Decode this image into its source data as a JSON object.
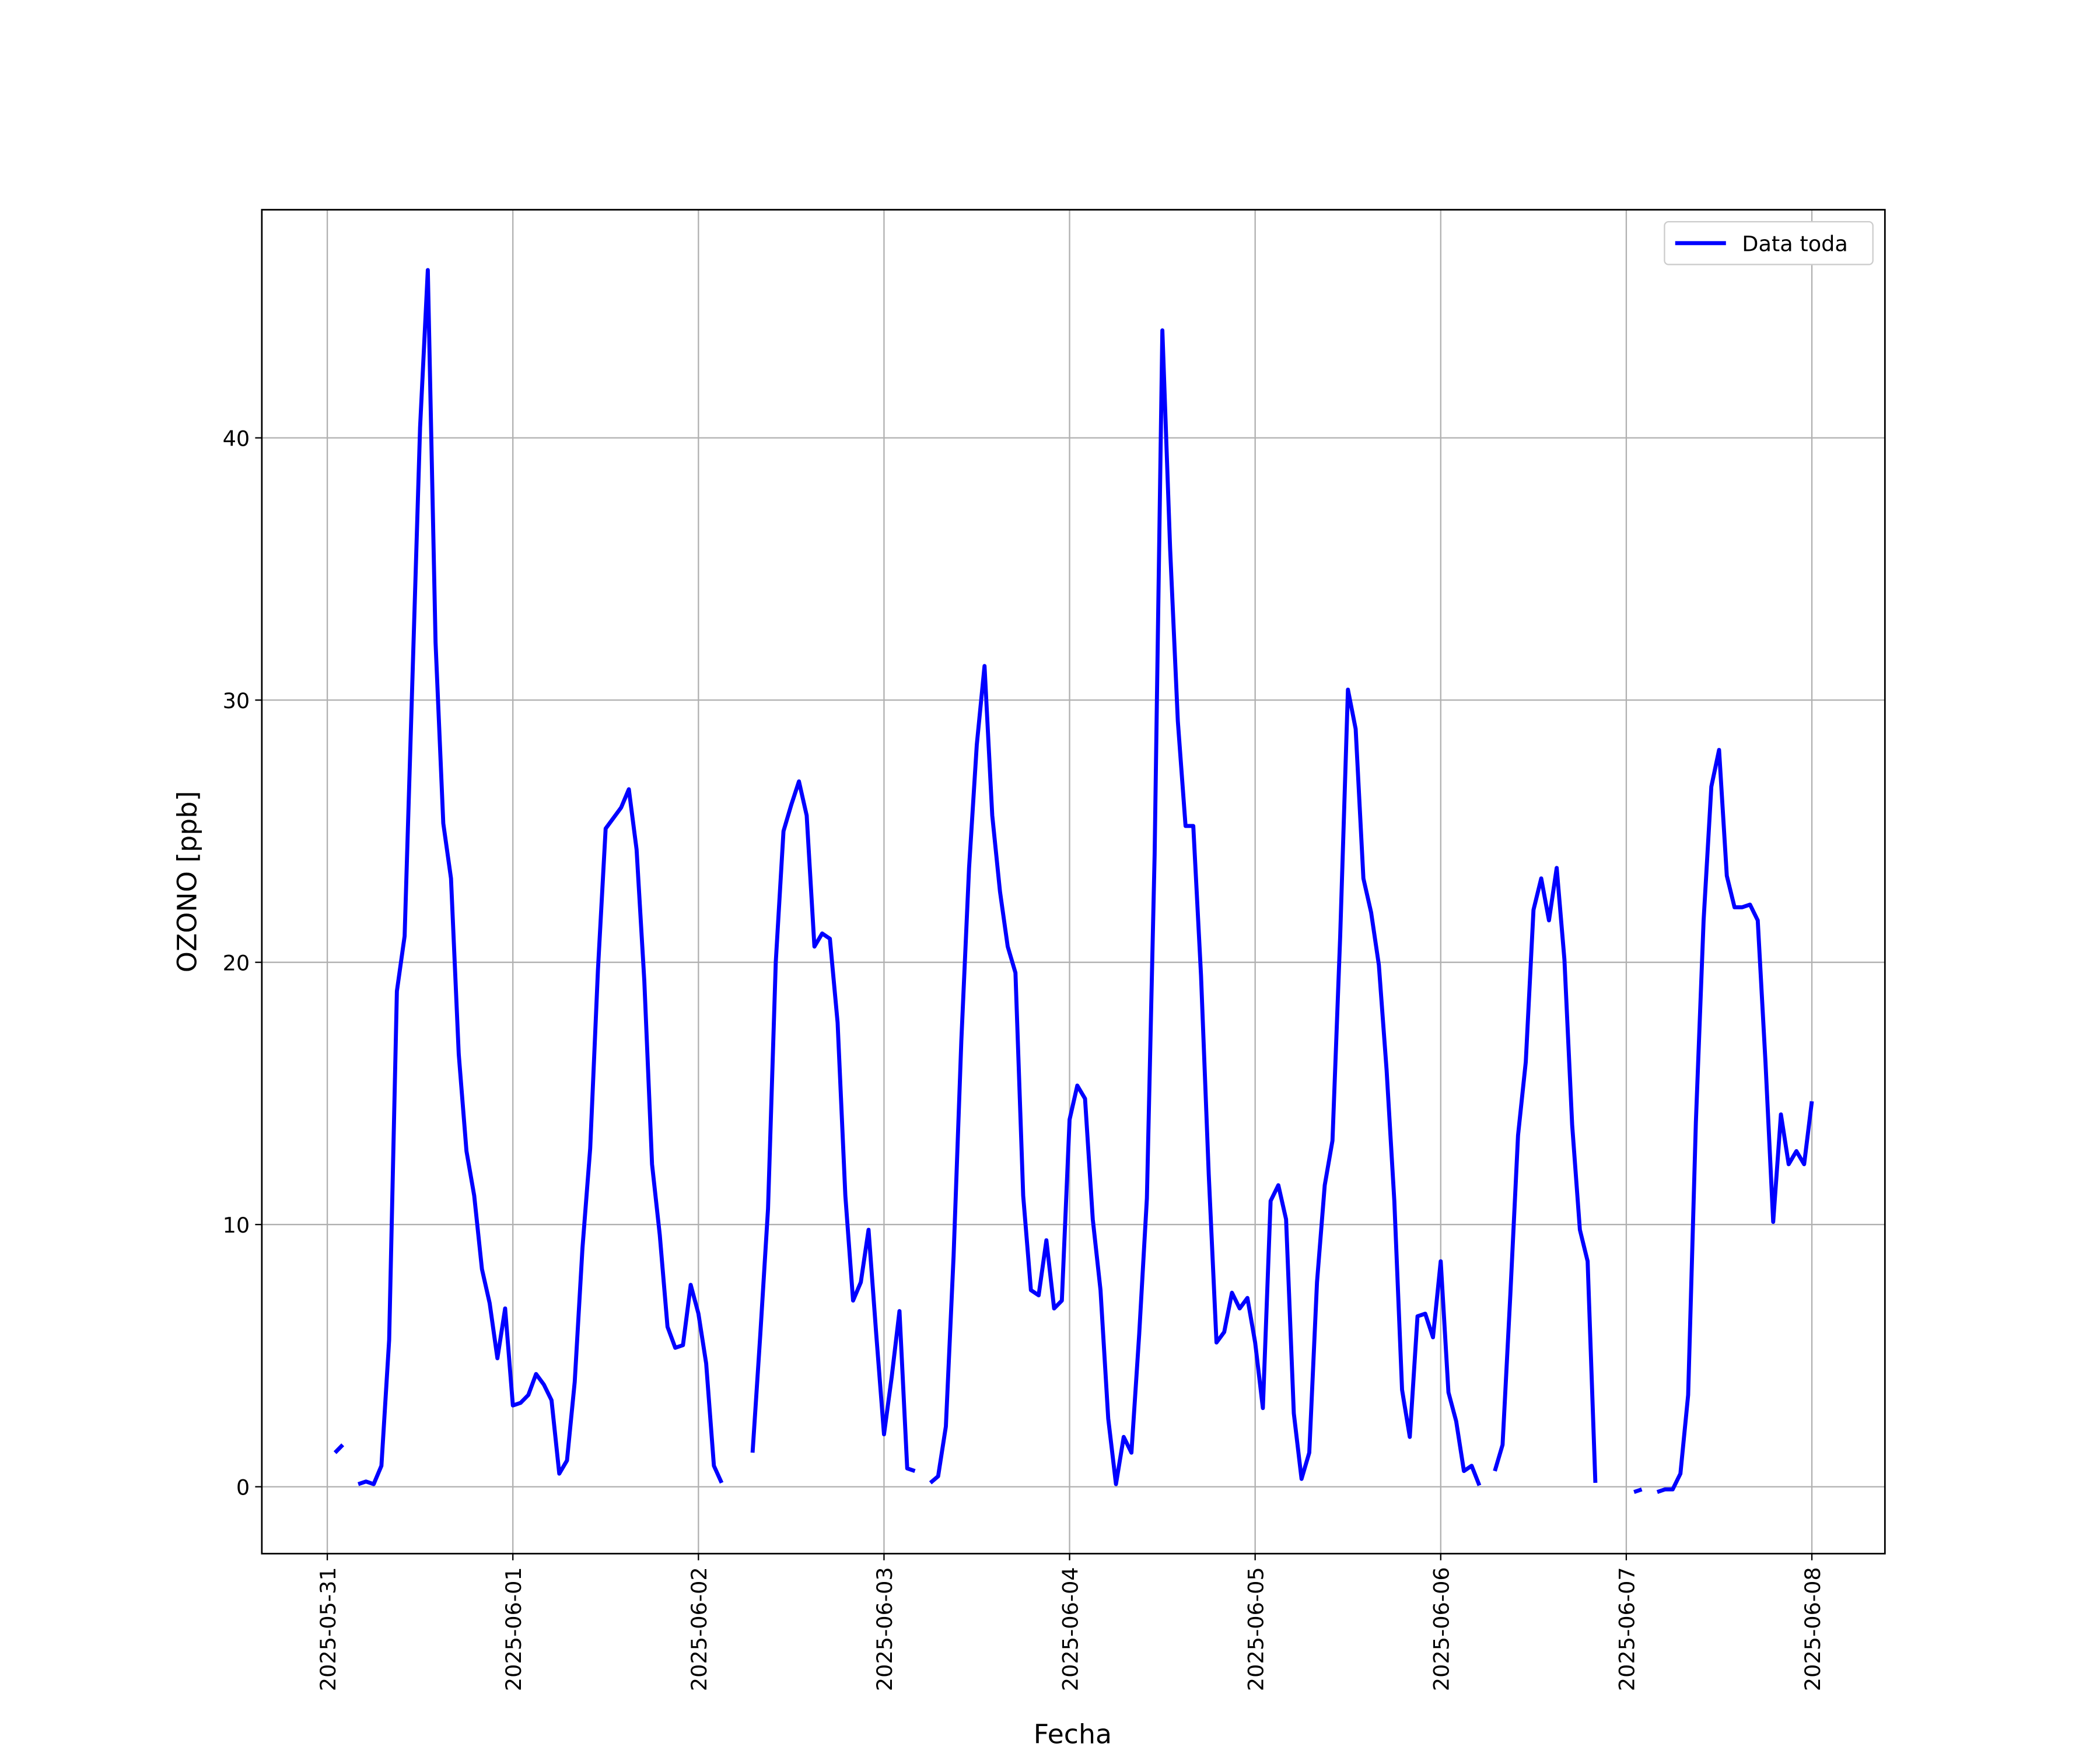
{
  "chart_data": {
    "type": "line",
    "xlabel": "Fecha",
    "ylabel": "OZONO [ppb]",
    "x": [
      "2025-05-31T01:00",
      "2025-05-31T02:00",
      "2025-05-31T03:00",
      "2025-05-31T04:00",
      "2025-05-31T05:00",
      "2025-05-31T06:00",
      "2025-05-31T07:00",
      "2025-05-31T08:00",
      "2025-05-31T09:00",
      "2025-05-31T10:00",
      "2025-05-31T11:00",
      "2025-05-31T12:00",
      "2025-05-31T13:00",
      "2025-05-31T14:00",
      "2025-05-31T15:00",
      "2025-05-31T16:00",
      "2025-05-31T17:00",
      "2025-05-31T18:00",
      "2025-05-31T19:00",
      "2025-05-31T20:00",
      "2025-05-31T21:00",
      "2025-05-31T22:00",
      "2025-05-31T23:00",
      "2025-06-01T00:00",
      "2025-06-01T01:00",
      "2025-06-01T02:00",
      "2025-06-01T03:00",
      "2025-06-01T04:00",
      "2025-06-01T05:00",
      "2025-06-01T06:00",
      "2025-06-01T07:00",
      "2025-06-01T08:00",
      "2025-06-01T09:00",
      "2025-06-01T10:00",
      "2025-06-01T11:00",
      "2025-06-01T12:00",
      "2025-06-01T13:00",
      "2025-06-01T14:00",
      "2025-06-01T15:00",
      "2025-06-01T16:00",
      "2025-06-01T17:00",
      "2025-06-01T18:00",
      "2025-06-01T19:00",
      "2025-06-01T20:00",
      "2025-06-01T21:00",
      "2025-06-01T22:00",
      "2025-06-01T23:00",
      "2025-06-02T00:00",
      "2025-06-02T01:00",
      "2025-06-02T02:00",
      "2025-06-02T03:00",
      "2025-06-02T04:00",
      "2025-06-02T07:00",
      "2025-06-02T08:00",
      "2025-06-02T09:00",
      "2025-06-02T10:00",
      "2025-06-02T11:00",
      "2025-06-02T12:00",
      "2025-06-02T13:00",
      "2025-06-02T14:00",
      "2025-06-02T15:00",
      "2025-06-02T16:00",
      "2025-06-02T17:00",
      "2025-06-02T18:00",
      "2025-06-02T19:00",
      "2025-06-02T20:00",
      "2025-06-02T21:00",
      "2025-06-02T22:00",
      "2025-06-02T23:00",
      "2025-06-03T00:00",
      "2025-06-03T01:00",
      "2025-06-03T02:00",
      "2025-06-03T03:00",
      "2025-06-03T04:00",
      "2025-06-03T05:00",
      "2025-06-03T06:00",
      "2025-06-03T07:00",
      "2025-06-03T08:00",
      "2025-06-03T09:00",
      "2025-06-03T10:00",
      "2025-06-03T11:00",
      "2025-06-03T12:00",
      "2025-06-03T13:00",
      "2025-06-03T14:00",
      "2025-06-03T15:00",
      "2025-06-03T16:00",
      "2025-06-03T17:00",
      "2025-06-03T18:00",
      "2025-06-03T19:00",
      "2025-06-03T20:00",
      "2025-06-03T21:00",
      "2025-06-03T22:00",
      "2025-06-03T23:00",
      "2025-06-04T00:00",
      "2025-06-04T01:00",
      "2025-06-04T02:00",
      "2025-06-04T03:00",
      "2025-06-04T04:00",
      "2025-06-04T05:00",
      "2025-06-04T06:00",
      "2025-06-04T07:00",
      "2025-06-04T08:00",
      "2025-06-04T09:00",
      "2025-06-04T10:00",
      "2025-06-04T11:00",
      "2025-06-04T12:00",
      "2025-06-04T13:00",
      "2025-06-04T14:00",
      "2025-06-04T15:00",
      "2025-06-04T16:00",
      "2025-06-04T17:00",
      "2025-06-04T18:00",
      "2025-06-04T19:00",
      "2025-06-04T20:00",
      "2025-06-04T21:00",
      "2025-06-04T22:00",
      "2025-06-04T23:00",
      "2025-06-05T00:00",
      "2025-06-05T01:00",
      "2025-06-05T02:00",
      "2025-06-05T03:00",
      "2025-06-05T04:00",
      "2025-06-05T05:00",
      "2025-06-05T06:00",
      "2025-06-05T07:00",
      "2025-06-05T08:00",
      "2025-06-05T09:00",
      "2025-06-05T10:00",
      "2025-06-05T11:00",
      "2025-06-05T12:00",
      "2025-06-05T13:00",
      "2025-06-05T14:00",
      "2025-06-05T15:00",
      "2025-06-05T16:00",
      "2025-06-05T17:00",
      "2025-06-05T18:00",
      "2025-06-05T19:00",
      "2025-06-05T20:00",
      "2025-06-05T21:00",
      "2025-06-05T22:00",
      "2025-06-05T23:00",
      "2025-06-06T00:00",
      "2025-06-06T01:00",
      "2025-06-06T02:00",
      "2025-06-06T03:00",
      "2025-06-06T04:00",
      "2025-06-06T05:00",
      "2025-06-06T06:00",
      "2025-06-06T07:00",
      "2025-06-06T08:00",
      "2025-06-06T09:00",
      "2025-06-06T10:00",
      "2025-06-06T11:00",
      "2025-06-06T12:00",
      "2025-06-06T13:00",
      "2025-06-06T14:00",
      "2025-06-06T15:00",
      "2025-06-06T16:00",
      "2025-06-06T17:00",
      "2025-06-06T18:00",
      "2025-06-06T19:00",
      "2025-06-06T20:00",
      "2025-06-06T21:00",
      "2025-06-07T01:00",
      "2025-06-07T02:00",
      "2025-06-07T03:00",
      "2025-06-07T04:00",
      "2025-06-07T05:00",
      "2025-06-07T06:00",
      "2025-06-07T07:00",
      "2025-06-07T08:00",
      "2025-06-07T09:00",
      "2025-06-07T10:00",
      "2025-06-07T11:00",
      "2025-06-07T12:00",
      "2025-06-07T13:00",
      "2025-06-07T14:00",
      "2025-06-07T15:00",
      "2025-06-07T16:00",
      "2025-06-07T17:00",
      "2025-06-07T18:00",
      "2025-06-07T19:00",
      "2025-06-07T20:00",
      "2025-06-07T21:00",
      "2025-06-07T22:00",
      "2025-06-07T23:00",
      "2025-06-08T00:00"
    ],
    "series": [
      {
        "name": "Data toda",
        "color": "#0000ff",
        "values": [
          1.3,
          1.6,
          null,
          0.1,
          0.2,
          0.1,
          0.8,
          5.6,
          18.9,
          21.0,
          30.7,
          40.4,
          46.4,
          32.2,
          25.3,
          23.2,
          16.5,
          12.8,
          11.1,
          8.3,
          7.0,
          4.9,
          6.8,
          3.1,
          3.2,
          3.5,
          4.3,
          3.9,
          3.3,
          0.5,
          1.0,
          4.0,
          9.1,
          12.9,
          19.7,
          25.1,
          25.5,
          25.9,
          26.6,
          24.3,
          19.3,
          12.3,
          9.6,
          6.1,
          5.3,
          5.4,
          7.7,
          6.6,
          4.7,
          0.8,
          0.15,
          null,
          1.3,
          5.8,
          10.6,
          20.0,
          25.0,
          26.0,
          26.9,
          25.6,
          20.6,
          21.1,
          20.9,
          17.7,
          11.1,
          7.1,
          7.8,
          9.8,
          5.8,
          2.0,
          4.2,
          6.7,
          0.7,
          0.6,
          null,
          0.15,
          0.4,
          2.3,
          8.8,
          17.0,
          23.6,
          28.3,
          31.3,
          25.6,
          22.7,
          20.6,
          19.6,
          11.1,
          7.5,
          7.3,
          9.4,
          6.8,
          7.1,
          14.0,
          15.3,
          14.8,
          10.2,
          7.5,
          2.6,
          0.1,
          1.9,
          1.3,
          5.8,
          11.0,
          24.1,
          44.1,
          35.8,
          29.2,
          25.2,
          25.2,
          19.5,
          11.9,
          5.5,
          5.9,
          7.4,
          6.8,
          7.2,
          5.5,
          3.0,
          10.9,
          11.5,
          10.2,
          2.8,
          0.3,
          1.3,
          7.8,
          11.5,
          13.2,
          21.0,
          30.4,
          28.9,
          23.2,
          21.9,
          19.9,
          15.9,
          10.9,
          3.7,
          1.9,
          6.5,
          6.6,
          5.7,
          8.6,
          3.6,
          2.5,
          0.6,
          0.8,
          0.05,
          null,
          0.6,
          1.6,
          7.3,
          13.4,
          16.2,
          22.0,
          23.2,
          21.6,
          23.6,
          20.1,
          13.8,
          9.8,
          8.6,
          0.15,
          null,
          -0.2,
          -0.1,
          null,
          -0.2,
          -0.1,
          -0.1,
          0.5,
          3.5,
          13.9,
          21.6,
          26.7,
          28.1,
          23.3,
          22.1,
          22.1,
          22.2,
          21.6,
          16.2,
          10.1,
          14.2,
          12.3,
          12.8,
          12.3,
          14.7
        ]
      }
    ],
    "xlim": [
      "2025-05-30T15:32",
      "2025-06-08T09:27"
    ],
    "xticks": [
      "2025-05-31",
      "2025-06-01",
      "2025-06-02",
      "2025-06-03",
      "2025-06-04",
      "2025-06-05",
      "2025-06-06",
      "2025-06-07",
      "2025-06-08"
    ],
    "ylim": [
      -2.55,
      48.7
    ],
    "yticks": [
      0,
      10,
      20,
      30,
      40
    ],
    "grid": true,
    "legend": "upper right"
  }
}
